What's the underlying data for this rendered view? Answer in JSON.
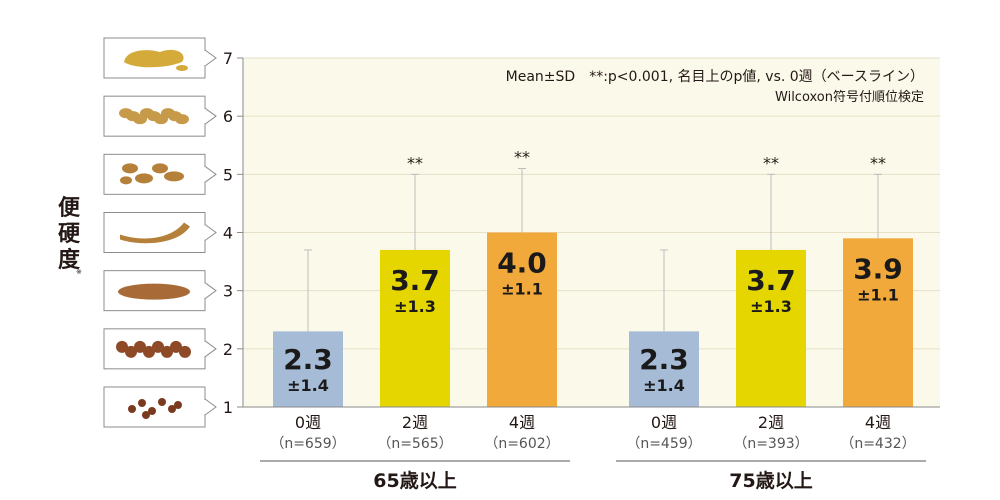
{
  "chart_data": {
    "type": "bar",
    "ylabel": "便硬度",
    "ylabel_note": "※",
    "ylim": [
      1,
      7
    ],
    "yticks": [
      "1",
      "2",
      "3",
      "4",
      "5",
      "6",
      "7"
    ],
    "legend_lines": [
      "Mean±SD　**:p<0.001, 名目上のp値, vs. 0週（ベースライン）",
      "Wilcoxon符号付順位検定"
    ],
    "groups": [
      {
        "name": "65歳以上",
        "bars": [
          {
            "category": "0週",
            "n": "（n=659）",
            "mean": 2.3,
            "sd": 1.4,
            "mean_label": "2.3",
            "sd_label": "±1.4",
            "sig": "",
            "color": "#a6bbd6"
          },
          {
            "category": "2週",
            "n": "（n=565）",
            "mean": 3.7,
            "sd": 1.3,
            "mean_label": "3.7",
            "sd_label": "±1.3",
            "sig": "**",
            "color": "#e6d600"
          },
          {
            "category": "4週",
            "n": "（n=602）",
            "mean": 4.0,
            "sd": 1.1,
            "mean_label": "4.0",
            "sd_label": "±1.1",
            "sig": "**",
            "color": "#f2a93b"
          }
        ]
      },
      {
        "name": "75歳以上",
        "bars": [
          {
            "category": "0週",
            "n": "（n=459）",
            "mean": 2.3,
            "sd": 1.4,
            "mean_label": "2.3",
            "sd_label": "±1.4",
            "sig": "",
            "color": "#a6bbd6"
          },
          {
            "category": "2週",
            "n": "（n=393）",
            "mean": 3.7,
            "sd": 1.3,
            "mean_label": "3.7",
            "sd_label": "±1.3",
            "sig": "**",
            "color": "#e6d600"
          },
          {
            "category": "4週",
            "n": "（n=432）",
            "mean": 3.9,
            "sd": 1.1,
            "mean_label": "3.9",
            "sd_label": "±1.1",
            "sig": "**",
            "color": "#f2a93b"
          }
        ]
      }
    ]
  },
  "stool_icons": [
    "watery-stool-icon",
    "mushy-stool-icon",
    "fluffy-pieces-stool-icon",
    "smooth-sausage-stool-icon",
    "cracked-sausage-stool-icon",
    "lumpy-sausage-stool-icon",
    "separate-hard-lumps-stool-icon"
  ],
  "colors": {
    "plot_bg": "#fbf9ea",
    "grid": "#e6e1c8",
    "axis": "#8a8a8a",
    "icon_border": "#8c8c8c",
    "stool": "#b5803a"
  }
}
